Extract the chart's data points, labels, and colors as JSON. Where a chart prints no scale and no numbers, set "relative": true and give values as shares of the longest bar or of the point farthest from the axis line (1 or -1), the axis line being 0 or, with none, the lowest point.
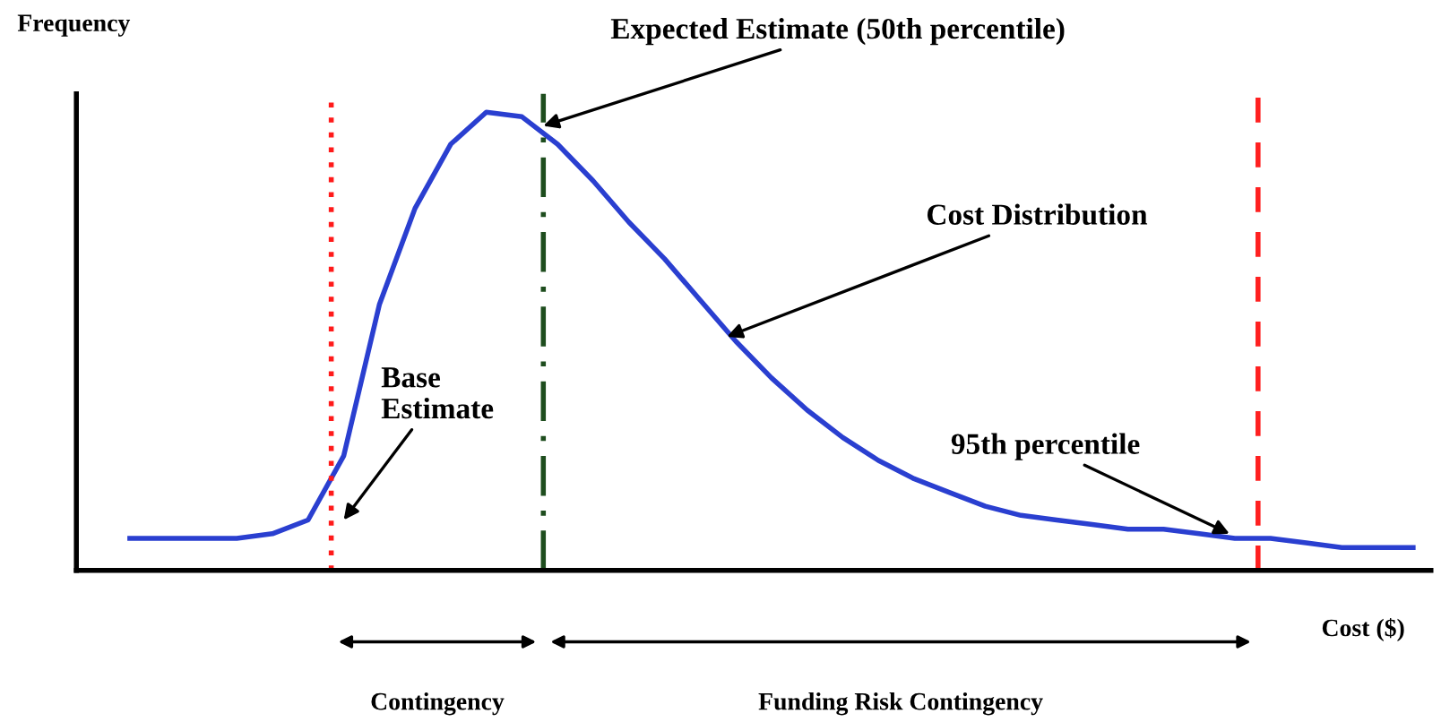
{
  "chart_data": {
    "type": "line",
    "relative": true,
    "xlabel": "Cost ($)",
    "ylabel": "Frequency",
    "categories": [
      null,
      null,
      null,
      null,
      null,
      null,
      null,
      null,
      null,
      null,
      null,
      null,
      null,
      null,
      null,
      null,
      null,
      null,
      null,
      null,
      null,
      null,
      null,
      null,
      null,
      null,
      null,
      null,
      null,
      null,
      null,
      null,
      null,
      null,
      null,
      null,
      null
    ],
    "series": [
      {
        "color": "#2a3fd0",
        "values": [
          0.07,
          0.07,
          0.07,
          0.07,
          0.08,
          0.11,
          0.25,
          0.58,
          0.79,
          0.93,
          1.0,
          0.99,
          0.93,
          0.85,
          0.76,
          0.68,
          0.59,
          0.5,
          0.42,
          0.35,
          0.29,
          0.24,
          0.2,
          0.17,
          0.14,
          0.12,
          0.11,
          0.1,
          0.09,
          0.09,
          0.08,
          0.07,
          0.07,
          0.06,
          0.05,
          0.05,
          0.05
        ]
      }
    ],
    "marker": "none",
    "line_style": "solid",
    "grid": false,
    "legend": false,
    "annotations": [
      "Expected Estimate (50th percentile)",
      "Cost Distribution",
      "Base\nEstimate",
      "95th percentile",
      "Contingency",
      "Funding Risk Contingency"
    ]
  }
}
